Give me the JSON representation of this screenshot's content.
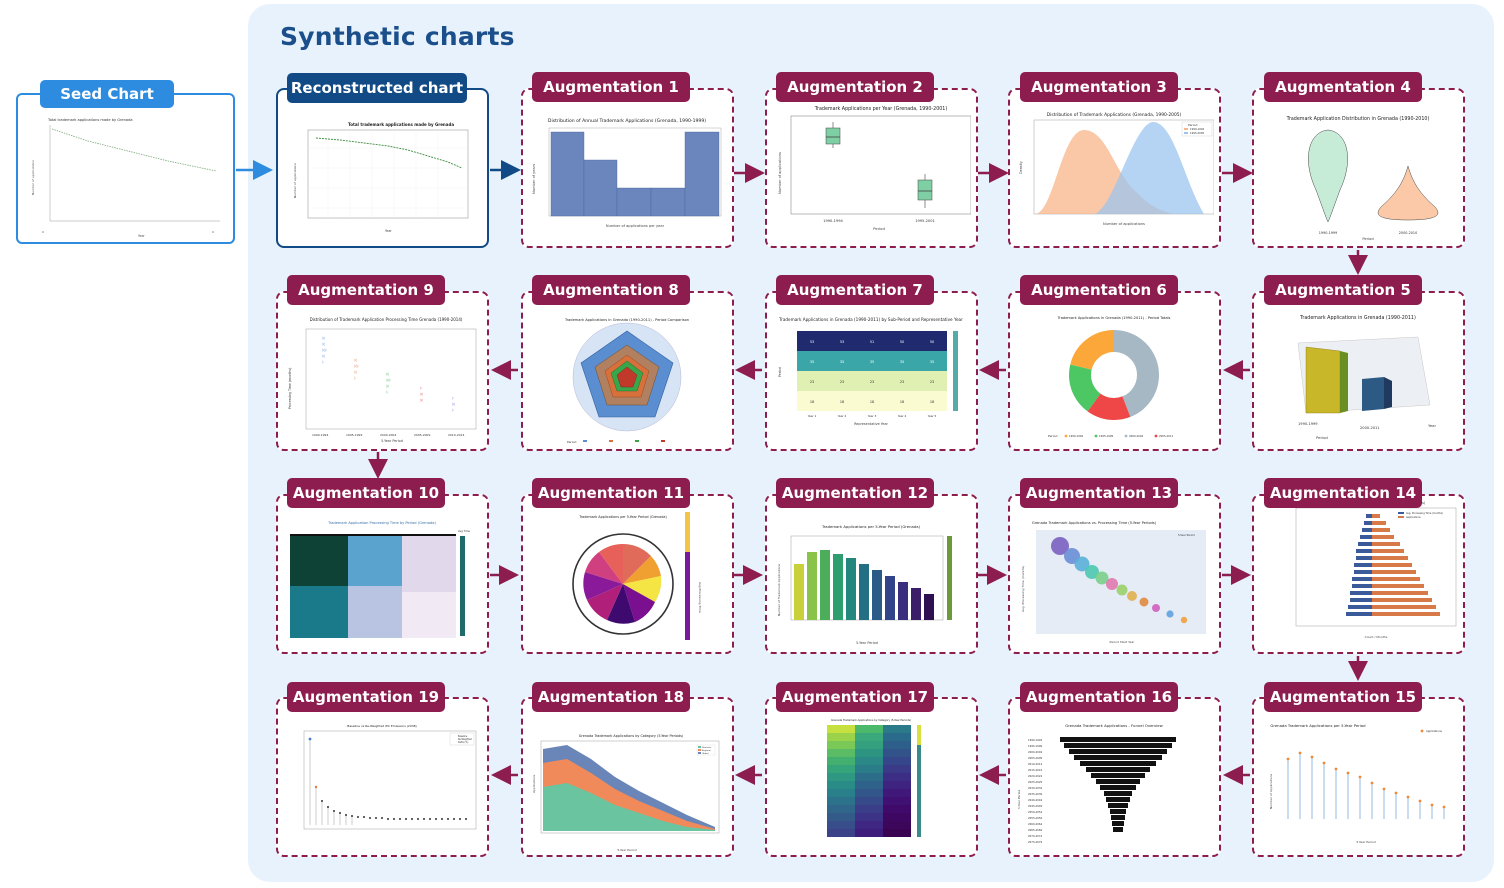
{
  "panel": {
    "title": "Synthetic charts"
  },
  "seed": {
    "label": "Seed Chart",
    "chart_title": "Total trademark applications made by Grenada",
    "xlabel": "Year",
    "ylabel": "Number of applications"
  },
  "reconstructed": {
    "label": "Reconstructed chart",
    "chart_title": "Total trademark applications made by Grenada",
    "xlabel": "Year",
    "ylabel": "Number of applications"
  },
  "augmentations": [
    {
      "label": "Augmentation 1",
      "chart_title": "Distribution of Annual Trademark Applications (Grenada, 1990-1999)",
      "xlabel": "Number of applications per year",
      "ylabel": "Number of years"
    },
    {
      "label": "Augmentation 2",
      "chart_title": "Trademark Applications per Year (Grenada, 1990-2001)",
      "xlabel": "Period",
      "ylabel": "Number of applications",
      "categories": [
        "1990-1994",
        "1995-2001"
      ]
    },
    {
      "label": "Augmentation 3",
      "chart_title": "Distribution of Trademark Applications (Grenada, 1990-2005)",
      "xlabel": "Number of applications",
      "ylabel": "Density",
      "legend": [
        "1990-1994",
        "1995-2005"
      ],
      "legend_title": "Period"
    },
    {
      "label": "Augmentation 4",
      "chart_title": "Trademark Application Distribution in Grenada (1990-2010)",
      "xlabel": "Period",
      "categories": [
        "1990-1999",
        "2000-2010"
      ]
    },
    {
      "label": "Augmentation 5",
      "chart_title": "Trademark Applications in Grenada (1990-2011)",
      "xlabel": "Period",
      "ylabel": "Year",
      "categories": [
        "1990-1999",
        "2000-2011"
      ]
    },
    {
      "label": "Augmentation 6",
      "chart_title": "Trademark Applications in Grenada (1990-2011) - Period Totals",
      "legend_title": "Period",
      "legend": [
        "1990-1994",
        "1995-1999",
        "2000-2004",
        "2005-2011"
      ]
    },
    {
      "label": "Augmentation 7",
      "chart_title": "Trademark Applications in Grenada (1990-2011) by Sub-Period and Representative Year",
      "xlabel": "Representative Year",
      "ylabel": "Period",
      "cells": [
        [
          "53",
          "53",
          "51",
          "50",
          "50"
        ],
        [
          "35",
          "35",
          "35",
          "35",
          "35"
        ],
        [
          "23",
          "23",
          "23",
          "23",
          "23"
        ],
        [
          "18",
          "18",
          "18",
          "18",
          "18"
        ]
      ],
      "xticks": [
        "Year 1",
        "Year 2",
        "Year 3",
        "Year 4",
        "Year 5"
      ]
    },
    {
      "label": "Augmentation 8",
      "chart_title": "Trademark Applications in Grenada (1990-2011) - Period Comparison",
      "legend_title": "Period"
    },
    {
      "label": "Augmentation 9",
      "chart_title": "Distribution of Trademark Application Processing Time Grenada (1990-2014)",
      "xlabel": "5-Year Period",
      "ylabel": "Processing Time (months)",
      "categories": [
        "1990-1994",
        "1995-1999",
        "2000-2004",
        "2005-2009",
        "2010-2014"
      ]
    },
    {
      "label": "Augmentation 10",
      "chart_title": "Trademark Application Processing Time by Period (Grenada)",
      "legend_title": "Avg Time"
    },
    {
      "label": "Augmentation 11",
      "chart_title": "Trademark Applications per 5-Year Period (Grenada)",
      "ylabel": "Avg Processing Time"
    },
    {
      "label": "Augmentation 12",
      "chart_title": "Trademark Applications per 5-Year Period (Grenada)",
      "xlabel": "5-Year Period",
      "ylabel": "Number of Trademark Applications"
    },
    {
      "label": "Augmentation 13",
      "chart_title": "Grenada Trademark Applications vs. Processing Time (5-Year Periods)",
      "xlabel": "Period Start Year",
      "ylabel": "Avg. Processing Time (months)",
      "legend_title": "5-Year Period"
    },
    {
      "label": "Augmentation 14",
      "chart_title": "Grenada Trademark Applications vs. Avg. Processing Time (5-Year Periods)",
      "xlabel": "Count / Months",
      "legend": [
        "Avg. Processing Time (months)",
        "Applications"
      ]
    },
    {
      "label": "Augmentation 15",
      "chart_title": "Grenada Trademark Applications per 5-Year Period",
      "xlabel": "5-Year Period",
      "ylabel": "Number of Applications",
      "legend": [
        "Applications"
      ]
    },
    {
      "label": "Augmentation 16",
      "chart_title": "Grenada Trademark Applications - Funnel Overview",
      "ylabel": "5-Year Period",
      "categories": [
        "1990-1994",
        "1995-1999",
        "2000-2004",
        "2005-2009",
        "2010-2014",
        "2015-2019",
        "2020-2024",
        "2025-2029",
        "2030-2034",
        "2035-2039",
        "2040-2044",
        "2045-2049",
        "2050-2054",
        "2055-2059",
        "2060-2064",
        "2065-2069",
        "2070-2074",
        "2075-2079"
      ]
    },
    {
      "label": "Augmentation 17",
      "chart_title": "Grenada Trademark Applications by Category (5-Year Periods)"
    },
    {
      "label": "Augmentation 18",
      "chart_title": "Grenada Trademark Applications by Category (5-Year Periods)",
      "xlabel": "5-Year Period",
      "ylabel": "Applications",
      "legend": [
        "Domestic",
        "Regional",
        "Global"
      ]
    },
    {
      "label": "Augmentation 19",
      "chart_title": "Baseline vs Re-Weighted IPC Emissions (2038)",
      "legend": [
        "Baseline",
        "Re-Weighted",
        "Delta (%)"
      ]
    }
  ]
}
